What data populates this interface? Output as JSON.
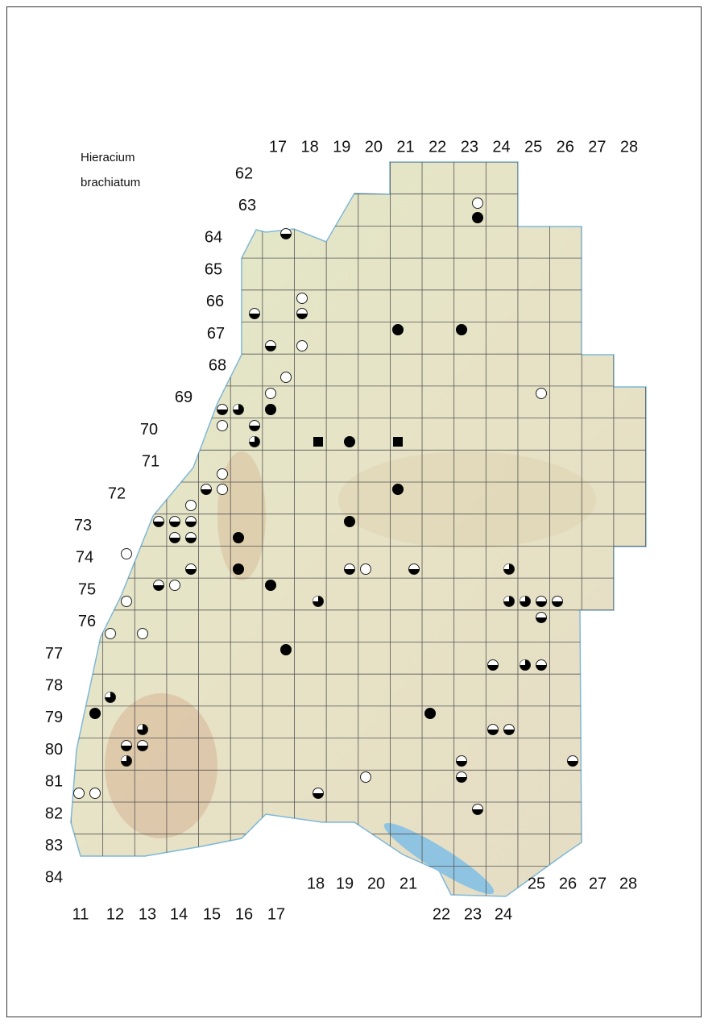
{
  "legend": {
    "lines": [
      "Hieracium",
      "brachiatum"
    ]
  },
  "grid": {
    "top_columns": [
      "17",
      "18",
      "19",
      "20",
      "21",
      "22",
      "23",
      "24",
      "25",
      "26",
      "27",
      "28"
    ],
    "rows": [
      "62",
      "63",
      "64",
      "65",
      "66",
      "67",
      "68",
      "69",
      "70",
      "71",
      "72",
      "73",
      "74",
      "75",
      "76",
      "77",
      "78",
      "79",
      "80",
      "81",
      "82",
      "83",
      "84"
    ],
    "bottom_columns_low": [
      "11",
      "12",
      "13",
      "14",
      "15",
      "16",
      "17",
      "22",
      "23",
      "24"
    ],
    "bottom_columns_high": [
      "18",
      "19",
      "20",
      "21",
      "25",
      "26",
      "27",
      "28"
    ]
  }
}
